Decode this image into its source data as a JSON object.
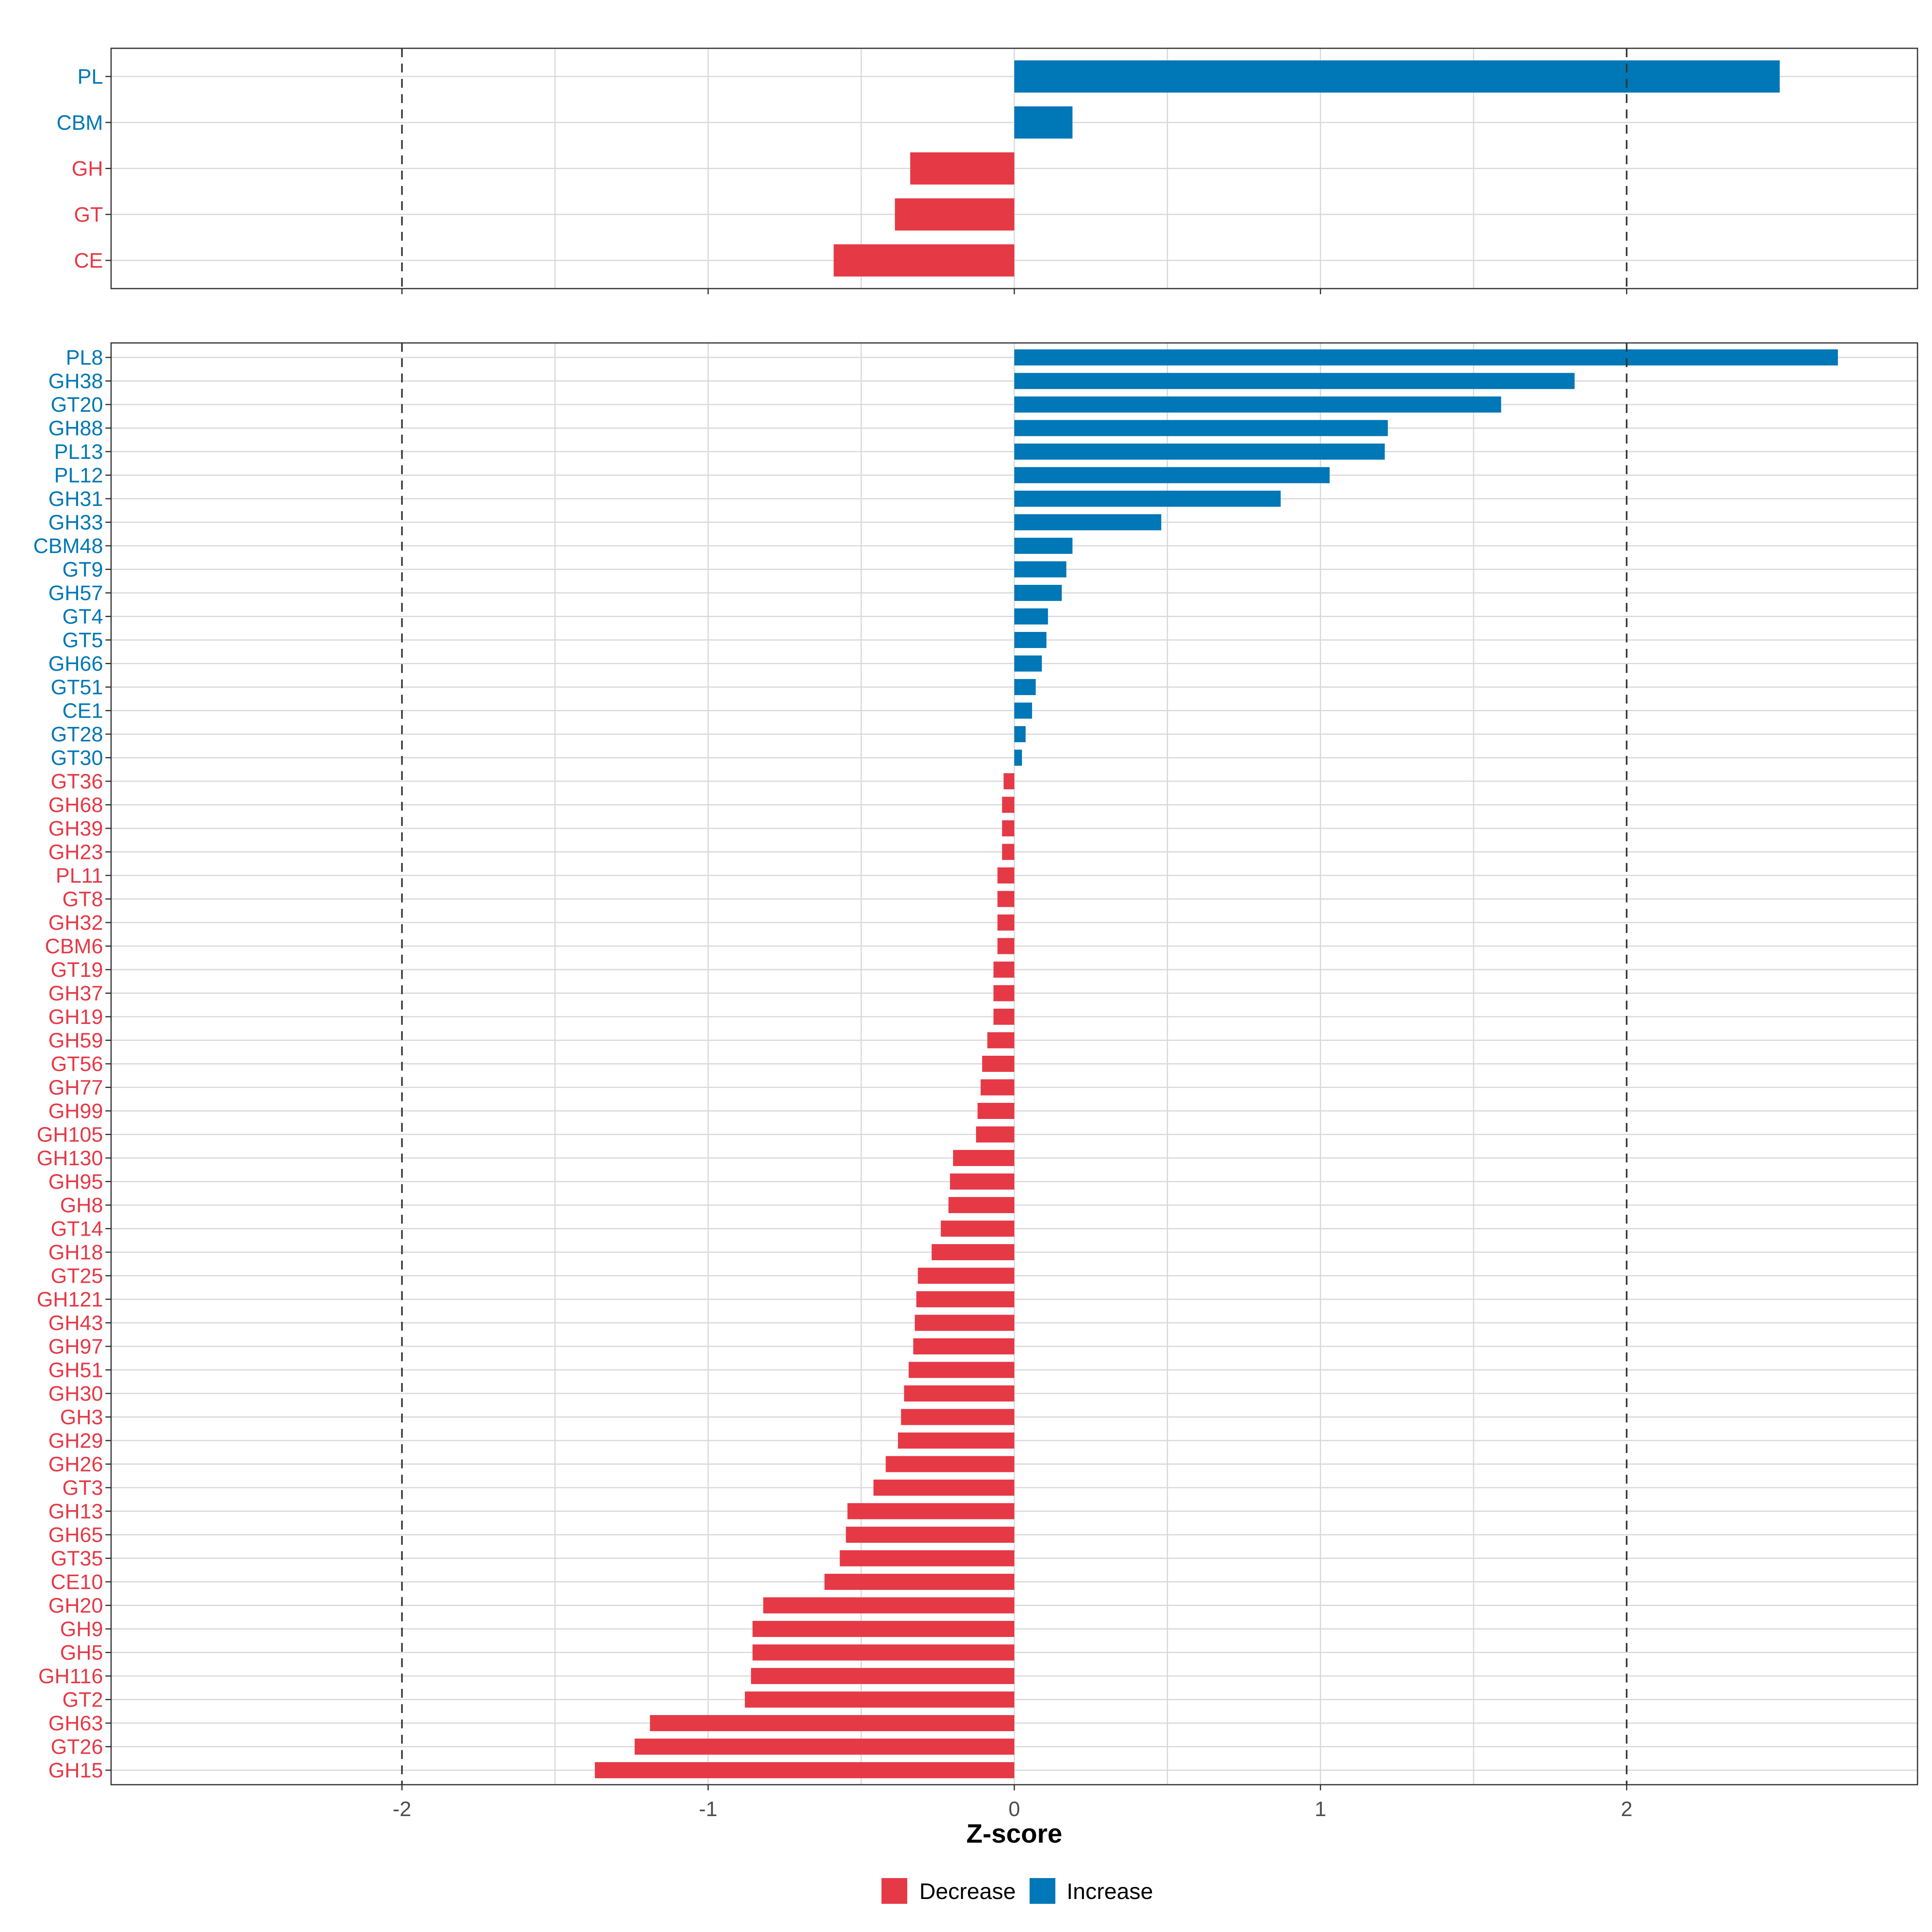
{
  "colors": {
    "decrease": "#E63946",
    "increase": "#0077B6"
  },
  "chart_data": [
    {
      "type": "bar",
      "orientation": "horizontal",
      "panel": "top",
      "categories": [
        "PL",
        "CBM",
        "GH",
        "GT",
        "CE"
      ],
      "values": [
        2.5,
        0.19,
        -0.34,
        -0.39,
        -0.59
      ],
      "xlim": [
        -2.95,
        2.95
      ],
      "reference_lines": [
        -2,
        2
      ],
      "grid": true
    },
    {
      "type": "bar",
      "orientation": "horizontal",
      "panel": "bottom",
      "categories": [
        "PL8",
        "GH38",
        "GT20",
        "GH88",
        "PL13",
        "PL12",
        "GH31",
        "GH33",
        "CBM48",
        "GT9",
        "GH57",
        "GT4",
        "GT5",
        "GH66",
        "GT51",
        "CE1",
        "GT28",
        "GT30",
        "GT36",
        "GH68",
        "GH39",
        "GH23",
        "PL11",
        "GT8",
        "GH32",
        "CBM6",
        "GT19",
        "GH37",
        "GH19",
        "GH59",
        "GT56",
        "GH77",
        "GH99",
        "GH105",
        "GH130",
        "GH95",
        "GH8",
        "GT14",
        "GH18",
        "GT25",
        "GH121",
        "GH43",
        "GH97",
        "GH51",
        "GH30",
        "GH3",
        "GH29",
        "GH26",
        "GT3",
        "GH13",
        "GH65",
        "GT35",
        "CE10",
        "GH20",
        "GH9",
        "GH5",
        "GH116",
        "GT2",
        "GH63",
        "GT26",
        "GH15"
      ],
      "values": [
        2.69,
        1.83,
        1.59,
        1.22,
        1.21,
        1.03,
        0.87,
        0.48,
        0.19,
        0.17,
        0.155,
        0.11,
        0.105,
        0.09,
        0.07,
        0.058,
        0.037,
        0.025,
        -0.035,
        -0.04,
        -0.04,
        -0.04,
        -0.055,
        -0.055,
        -0.055,
        -0.055,
        -0.068,
        -0.068,
        -0.068,
        -0.088,
        -0.105,
        -0.11,
        -0.12,
        -0.125,
        -0.2,
        -0.21,
        -0.215,
        -0.24,
        -0.27,
        -0.315,
        -0.32,
        -0.325,
        -0.33,
        -0.345,
        -0.36,
        -0.37,
        -0.38,
        -0.42,
        -0.46,
        -0.545,
        -0.55,
        -0.57,
        -0.62,
        -0.82,
        -0.855,
        -0.855,
        -0.86,
        -0.88,
        -1.19,
        -1.24,
        -1.37
      ],
      "xlim": [
        -2.95,
        2.95
      ],
      "reference_lines": [
        -2,
        2
      ],
      "grid": true,
      "x_ticks": [
        -2,
        -1,
        0,
        1,
        2
      ],
      "x_tick_labels": [
        "-2",
        "-1",
        "0",
        "1",
        "2"
      ],
      "xlabel": "Z-score"
    }
  ],
  "legend": {
    "position": "bottom",
    "items": [
      {
        "label": "Decrease",
        "color": "#E63946"
      },
      {
        "label": "Increase",
        "color": "#0077B6"
      }
    ]
  }
}
